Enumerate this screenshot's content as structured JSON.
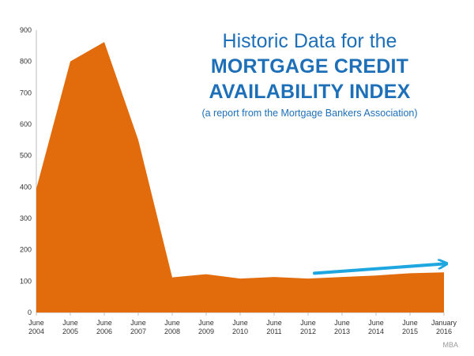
{
  "title": {
    "line1": "Historic Data for the",
    "line2": "MORTGAGE CREDIT",
    "line3": "AVAILABILITY INDEX",
    "subtitle": "(a report from the Mortgage Bankers Association)"
  },
  "source": "MBA",
  "colors": {
    "area": "#e26c0c",
    "arrow": "#1ea6e0",
    "title": "#1d6fb8"
  },
  "chart_data": {
    "type": "area",
    "title": "Historic Data for the MORTGAGE CREDIT AVAILABILITY INDEX",
    "subtitle": "(a report from the Mortgage Bankers Association)",
    "xlabel": "",
    "ylabel": "",
    "ylim": [
      0,
      900
    ],
    "yticks": [
      0,
      100,
      200,
      300,
      400,
      500,
      600,
      700,
      800,
      900
    ],
    "categories": [
      [
        "June",
        "2004"
      ],
      [
        "June",
        "2005"
      ],
      [
        "June",
        "2006"
      ],
      [
        "June",
        "2007"
      ],
      [
        "June",
        "2008"
      ],
      [
        "June",
        "2009"
      ],
      [
        "June",
        "2010"
      ],
      [
        "June",
        "2011"
      ],
      [
        "June",
        "2012"
      ],
      [
        "June",
        "2013"
      ],
      [
        "June",
        "2014"
      ],
      [
        "June",
        "2015"
      ],
      [
        "January",
        "2016"
      ]
    ],
    "series": [
      {
        "values": [
          395,
          800,
          862,
          550,
          112,
          122,
          108,
          113,
          108,
          113,
          118,
          125,
          128
        ]
      }
    ],
    "annotations": [
      {
        "type": "arrow",
        "from": [
          "June 2012",
          125
        ],
        "to": [
          "January 2016",
          155
        ]
      }
    ],
    "grid": false,
    "legend": "none"
  }
}
